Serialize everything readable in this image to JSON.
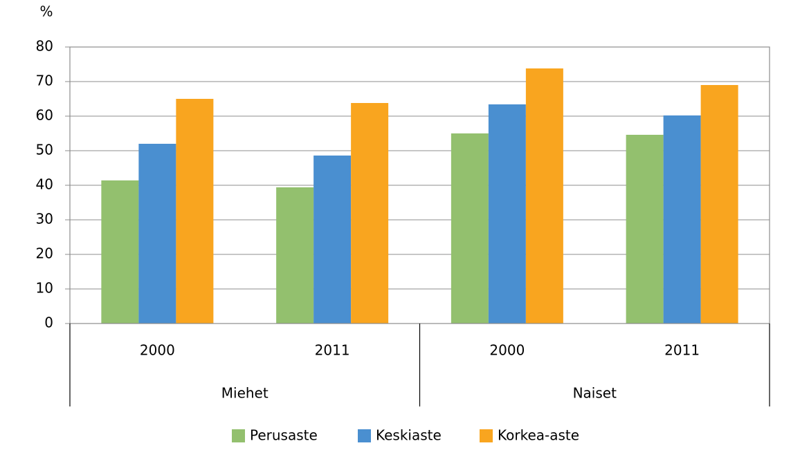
{
  "chart_data": {
    "type": "bar",
    "y_label": "%",
    "groups": [
      {
        "label": "Miehet",
        "categories": [
          "2000",
          "2011"
        ]
      },
      {
        "label": "Naiset",
        "categories": [
          "2000",
          "2011"
        ]
      }
    ],
    "series": [
      {
        "name": "Perusaste",
        "color": "#93c06e",
        "values": [
          41.4,
          39.4,
          55,
          54.6
        ]
      },
      {
        "name": "Keskiaste",
        "color": "#4a8fd0",
        "values": [
          52,
          48.6,
          63.4,
          60.2
        ]
      },
      {
        "name": "Korkea-aste",
        "color": "#f9a51f",
        "values": [
          65,
          63.8,
          73.8,
          69
        ]
      }
    ],
    "ylim": [
      0,
      80
    ],
    "yticks": [
      0,
      10,
      20,
      30,
      40,
      50,
      60,
      70,
      80
    ],
    "grid": true,
    "legend": "bottom"
  }
}
